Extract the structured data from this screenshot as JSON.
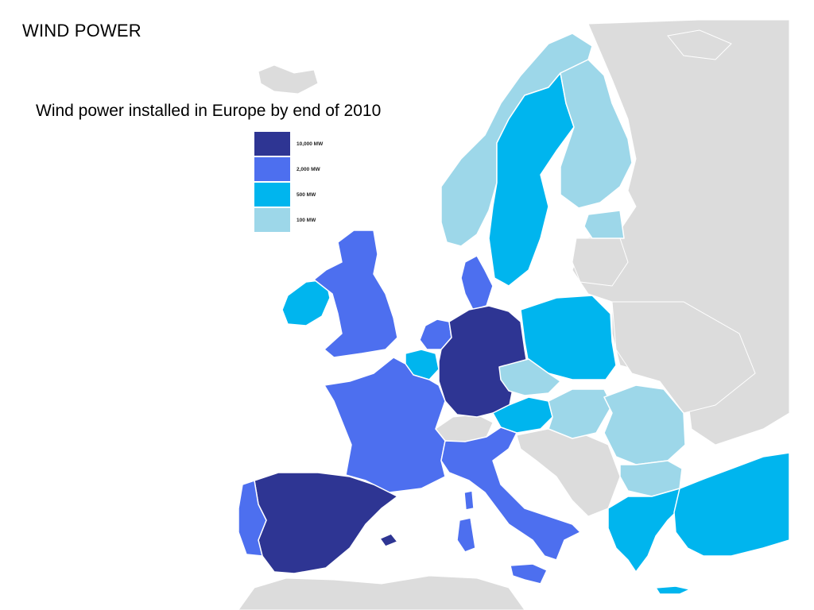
{
  "page_title": "WIND POWER",
  "map_title": "Wind power installed in Europe by end of 2010",
  "colors": {
    "sea": "#ffffff",
    "no_data": "#dcdcdc",
    "border": "#ffffff"
  },
  "legend": [
    {
      "label": "10,000 MW",
      "color": "#2e3593"
    },
    {
      "label": "2,000 MW",
      "color": "#4d6fef"
    },
    {
      "label": "500 MW",
      "color": "#00b5ee"
    },
    {
      "label": "100 MW",
      "color": "#9dd7e9"
    }
  ],
  "countries": [
    {
      "name": "Germany",
      "class": "10,000 MW"
    },
    {
      "name": "Spain",
      "class": "10,000 MW"
    },
    {
      "name": "France",
      "class": "2,000 MW"
    },
    {
      "name": "Italy",
      "class": "2,000 MW"
    },
    {
      "name": "United Kingdom",
      "class": "2,000 MW"
    },
    {
      "name": "Portugal",
      "class": "2,000 MW"
    },
    {
      "name": "Denmark",
      "class": "2,000 MW"
    },
    {
      "name": "Netherlands",
      "class": "2,000 MW"
    },
    {
      "name": "Sweden",
      "class": "500 MW"
    },
    {
      "name": "Poland",
      "class": "500 MW"
    },
    {
      "name": "Ireland",
      "class": "500 MW"
    },
    {
      "name": "Belgium",
      "class": "500 MW"
    },
    {
      "name": "Austria",
      "class": "500 MW"
    },
    {
      "name": "Greece",
      "class": "500 MW"
    },
    {
      "name": "Turkey",
      "class": "500 MW"
    },
    {
      "name": "Norway",
      "class": "100 MW"
    },
    {
      "name": "Finland",
      "class": "100 MW"
    },
    {
      "name": "Estonia",
      "class": "100 MW"
    },
    {
      "name": "Czech Republic",
      "class": "100 MW"
    },
    {
      "name": "Hungary",
      "class": "100 MW"
    },
    {
      "name": "Romania",
      "class": "100 MW"
    },
    {
      "name": "Bulgaria",
      "class": "100 MW"
    }
  ]
}
